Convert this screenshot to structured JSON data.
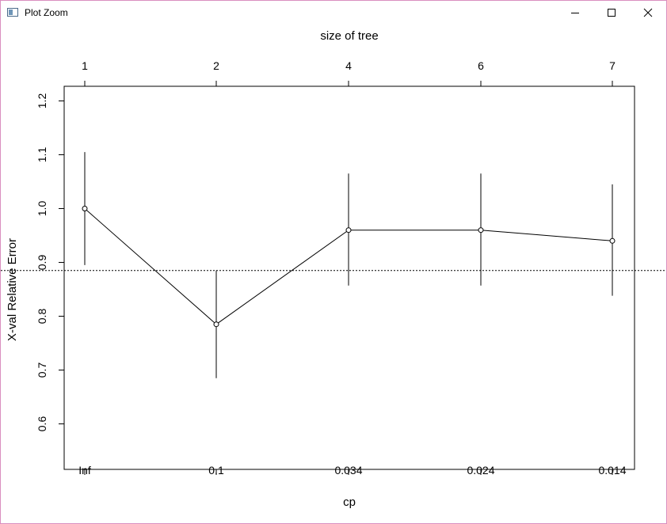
{
  "window": {
    "title": "Plot Zoom",
    "icon": "plot-window-icon",
    "buttons": [
      "minimize-icon",
      "maximize-icon",
      "close-icon"
    ]
  },
  "chart_data": {
    "type": "line",
    "top_axis_label": "size of tree",
    "top_ticks": [
      "1",
      "2",
      "4",
      "6",
      "7"
    ],
    "xlabel": "cp",
    "categories": [
      "Inf",
      "0.1",
      "0.034",
      "0.024",
      "0.014"
    ],
    "ylabel": "X-val Relative Error",
    "yticks": [
      0.6,
      0.7,
      0.8,
      0.9,
      1.0,
      1.1,
      1.2
    ],
    "ytick_labels": [
      "0.6",
      "0.7",
      "0.8",
      "0.9",
      "1.0",
      "1.1",
      "1.2"
    ],
    "ylim": [
      0.56,
      1.23
    ],
    "series": [
      {
        "values": [
          1.0,
          0.785,
          0.96,
          0.96,
          0.94
        ],
        "error_low": [
          0.895,
          0.685,
          0.857,
          0.857,
          0.838
        ],
        "error_high": [
          1.105,
          0.885,
          1.065,
          1.065,
          1.045
        ]
      }
    ],
    "reference_line": 0.885,
    "reference_line_style": "dotted",
    "marker": "open-circle",
    "grid": false,
    "legend": "none"
  }
}
